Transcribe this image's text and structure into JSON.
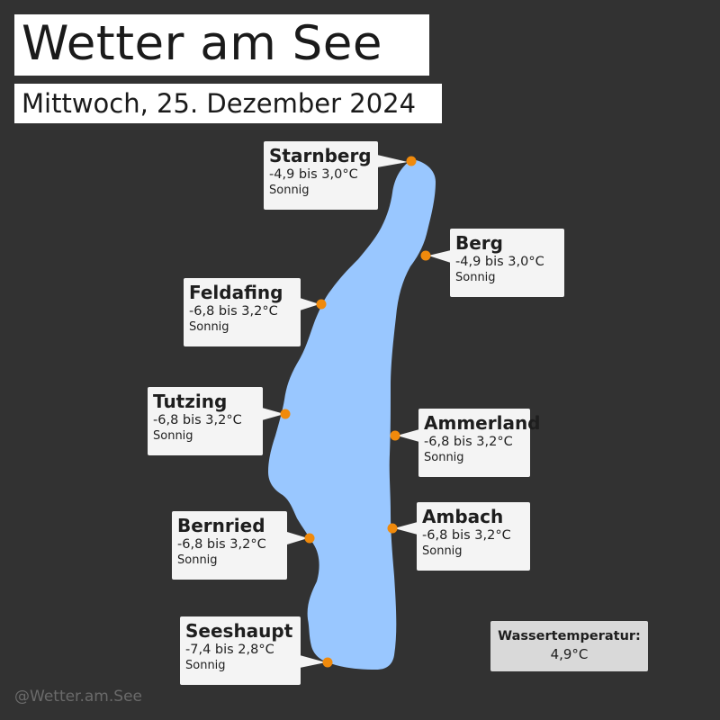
{
  "header": {
    "title": "Wetter am See",
    "subtitle": "Mittwoch, 25. Dezember 2024"
  },
  "colors": {
    "background": "#323232",
    "lake": "#99c7ff",
    "marker": "#f08a0c",
    "card": "#f4f4f4",
    "water_box": "#d9d9d9"
  },
  "locations": [
    {
      "name": "Starnberg",
      "temp": "-4,9 bis 3,0°C",
      "condition": "Sonnig"
    },
    {
      "name": "Berg",
      "temp": "-4,9 bis 3,0°C",
      "condition": "Sonnig"
    },
    {
      "name": "Feldafing",
      "temp": "-6,8 bis 3,2°C",
      "condition": "Sonnig"
    },
    {
      "name": "Tutzing",
      "temp": "-6,8 bis 3,2°C",
      "condition": "Sonnig"
    },
    {
      "name": "Ammerland",
      "temp": "-6,8 bis 3,2°C",
      "condition": "Sonnig"
    },
    {
      "name": "Bernried",
      "temp": "-6,8 bis 3,2°C",
      "condition": "Sonnig"
    },
    {
      "name": "Ambach",
      "temp": "-6,8 bis 3,2°C",
      "condition": "Sonnig"
    },
    {
      "name": "Seeshaupt",
      "temp": "-7,4 bis 2,8°C",
      "condition": "Sonnig"
    }
  ],
  "water": {
    "label": "Wassertemperatur:",
    "value": "4,9°C"
  },
  "footer": {
    "handle": "@Wetter.am.See"
  }
}
